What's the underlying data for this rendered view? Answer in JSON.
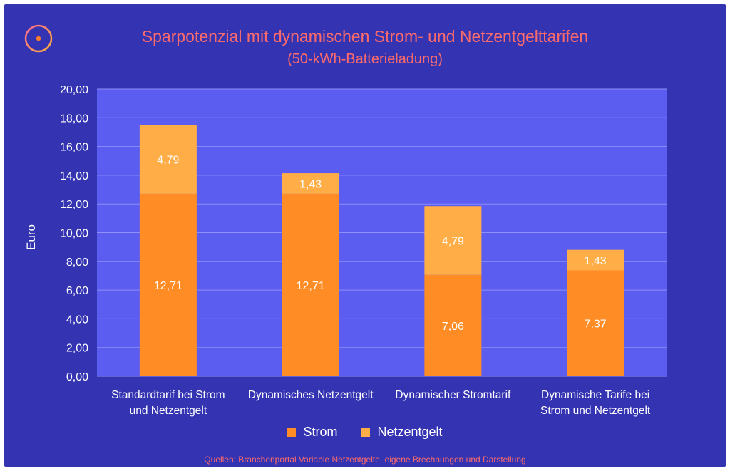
{
  "chart_data": {
    "type": "bar",
    "stacked": true,
    "title": "Sparpotenzial mit dynamischen Strom- und Netzentgelttarifen",
    "subtitle": "(50-kWh-Batterieladung)",
    "xlabel": "",
    "ylabel": "Euro",
    "ylim": [
      0,
      20
    ],
    "yticks": [
      "0,00",
      "2,00",
      "4,00",
      "6,00",
      "8,00",
      "10,00",
      "12,00",
      "14,00",
      "16,00",
      "18,00",
      "20,00"
    ],
    "grid": true,
    "legend_position": "bottom",
    "categories": [
      [
        "Standardtarif bei Strom",
        "und Netzentgelt"
      ],
      [
        "Dynamisches Netzentgelt"
      ],
      [
        "Dynamischer Stromtarif"
      ],
      [
        "Dynamische Tarife bei",
        "Strom und Netzentgelt"
      ]
    ],
    "series": [
      {
        "name": "Strom",
        "color": "#ff8c24",
        "values": [
          12.71,
          12.71,
          7.06,
          7.37
        ],
        "labels": [
          "12,71",
          "12,71",
          "7,06",
          "7,37"
        ]
      },
      {
        "name": "Netzentgelt",
        "color": "#ffad47",
        "values": [
          4.79,
          1.43,
          4.79,
          1.43
        ],
        "labels": [
          "4,79",
          "1,43",
          "4,79",
          "1,43"
        ]
      }
    ]
  },
  "source_note": "Quellen: Branchenportal Variable Netzentgelte, eigene Brechnungen und Darstellung",
  "logo_icon": "circle-dot-logo",
  "colors": {
    "background": "#3434b2",
    "plot_area": "#5b5cf0",
    "title": "#ff6b6b"
  }
}
